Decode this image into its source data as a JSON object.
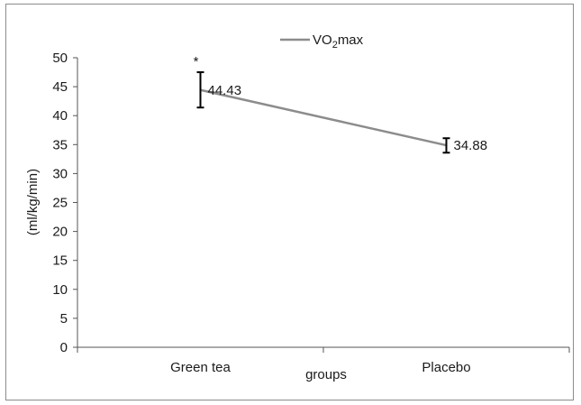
{
  "chart_data": {
    "type": "line",
    "categories": [
      "Green tea",
      "Placebo"
    ],
    "series": [
      {
        "name": "VO2max",
        "values": [
          44.43,
          34.88
        ],
        "error_low": [
          41.4,
          33.6
        ],
        "error_high": [
          47.5,
          36.1
        ],
        "color": "#8c8c8c",
        "data_labels": [
          "44.43",
          "34.88"
        ]
      }
    ],
    "legend": {
      "prefix": "VO",
      "subscript": "2",
      "suffix": "max",
      "placement": "top-center"
    },
    "xlabel": "groups",
    "ylabel": "(ml/kg/min)",
    "ylim": [
      0,
      50
    ],
    "yticks": [
      0,
      5,
      10,
      15,
      20,
      25,
      30,
      35,
      40,
      45,
      50
    ],
    "annotations": [
      {
        "text": "*",
        "category": "Green tea"
      }
    ],
    "grid": false,
    "axis_color": "#555555"
  }
}
